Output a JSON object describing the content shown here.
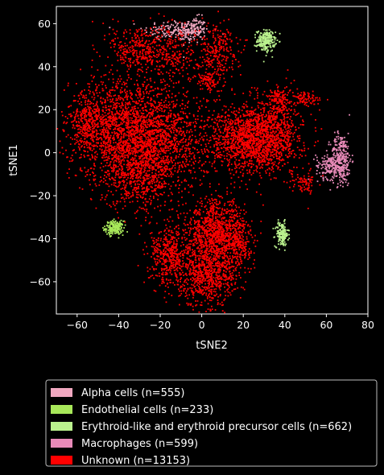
{
  "chart_data": {
    "type": "scatter",
    "title": "",
    "xlabel": "tSNE2",
    "ylabel": "tSNE1",
    "xlim": [
      -70,
      80
    ],
    "ylim": [
      -75,
      68
    ],
    "xticks": [
      -60,
      -40,
      -20,
      0,
      20,
      40,
      60,
      80
    ],
    "yticks": [
      -60,
      -40,
      -20,
      0,
      20,
      40,
      60
    ],
    "xtick_labels": [
      "−60",
      "−40",
      "−20",
      "0",
      "20",
      "40",
      "60",
      "80"
    ],
    "ytick_labels": [
      "−60",
      "−40",
      "−20",
      "0",
      "20",
      "40",
      "60"
    ],
    "grid": false,
    "background": "#000000",
    "legend_position": "below",
    "series": [
      {
        "name": "Alpha cells (n=555)",
        "color": "#f0a8c0",
        "clusters": [
          {
            "x": -12,
            "y": 57,
            "sx": 8,
            "sy": 2.5,
            "n": 160
          },
          {
            "x": -4,
            "y": 57,
            "sx": 3,
            "sy": 3,
            "n": 120
          }
        ]
      },
      {
        "name": "Endothelial cells (n=233)",
        "color": "#a8e85a",
        "clusters": [
          {
            "x": -42,
            "y": -35,
            "sx": 2.2,
            "sy": 1.6,
            "n": 200
          }
        ]
      },
      {
        "name": "Erythroid-like and erythroid precursor cells (n=662)",
        "color": "#bbf28e",
        "clusters": [
          {
            "x": 31,
            "y": 52,
            "sx": 2.2,
            "sy": 2.5,
            "n": 220
          },
          {
            "x": 38.5,
            "y": -38,
            "sx": 1.6,
            "sy": 2.8,
            "n": 170
          }
        ]
      },
      {
        "name": "Macrophages (n=599)",
        "color": "#e88ab8",
        "clusters": [
          {
            "x": 67,
            "y": -3,
            "sx": 2.5,
            "sy": 6,
            "n": 320
          },
          {
            "x": 61,
            "y": -6,
            "sx": 3,
            "sy": 3,
            "n": 120
          }
        ]
      },
      {
        "name": "Unknown (n=13153)",
        "color": "#ff0000",
        "clusters": [
          {
            "x": -38,
            "y": 10,
            "sx": 13,
            "sy": 12,
            "n": 1700
          },
          {
            "x": -18,
            "y": 5,
            "sx": 10,
            "sy": 12,
            "n": 900
          },
          {
            "x": -30,
            "y": -10,
            "sx": 8,
            "sy": 8,
            "n": 500
          },
          {
            "x": -55,
            "y": 15,
            "sx": 4,
            "sy": 6,
            "n": 250
          },
          {
            "x": -30,
            "y": 48,
            "sx": 7,
            "sy": 6,
            "n": 320
          },
          {
            "x": -14,
            "y": 46,
            "sx": 6,
            "sy": 7,
            "n": 200
          },
          {
            "x": 7,
            "y": 48,
            "sx": 5,
            "sy": 6,
            "n": 250
          },
          {
            "x": 3,
            "y": 33,
            "sx": 3,
            "sy": 2.5,
            "n": 100
          },
          {
            "x": 23,
            "y": 6,
            "sx": 10,
            "sy": 8,
            "n": 1300
          },
          {
            "x": 35,
            "y": 10,
            "sx": 7,
            "sy": 9,
            "n": 500
          },
          {
            "x": 38,
            "y": 25,
            "sx": 3,
            "sy": 3,
            "n": 120
          },
          {
            "x": 50,
            "y": 25,
            "sx": 4,
            "sy": 1.5,
            "n": 80
          },
          {
            "x": 7,
            "y": -38,
            "sx": 7,
            "sy": 8,
            "n": 1000
          },
          {
            "x": 3,
            "y": -57,
            "sx": 7,
            "sy": 7,
            "n": 700
          },
          {
            "x": -15,
            "y": -48,
            "sx": 5,
            "sy": 7,
            "n": 450
          },
          {
            "x": 18,
            "y": -42,
            "sx": 3,
            "sy": 6,
            "n": 200
          },
          {
            "x": 50,
            "y": -14,
            "sx": 3,
            "sy": 3,
            "n": 70
          }
        ]
      }
    ]
  }
}
